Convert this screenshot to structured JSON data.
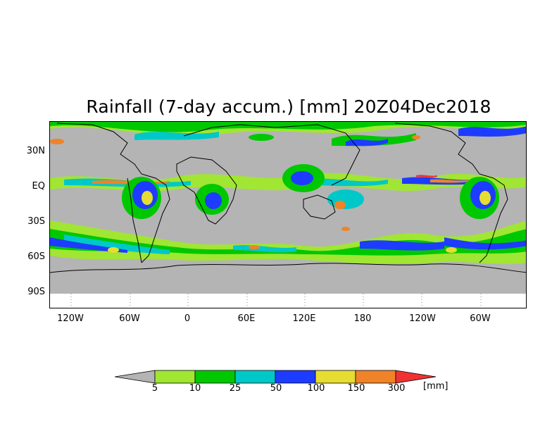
{
  "title": "Rainfall (7-day accum.) [mm] 20Z04Dec2018",
  "lat_labels": [
    "30N",
    "EQ",
    "30S",
    "60S",
    "90S"
  ],
  "lon_labels": [
    "120W",
    "60W",
    "0",
    "60E",
    "120E",
    "180",
    "120W",
    "60W"
  ],
  "legend": {
    "thresholds": [
      "5",
      "10",
      "25",
      "50",
      "100",
      "150",
      "300"
    ],
    "unit": "[mm]",
    "colors": [
      "#b4b4b4",
      "#a0e632",
      "#00c800",
      "#00c8c8",
      "#1e3cff",
      "#e6dc32",
      "#f08228",
      "#f03232"
    ]
  },
  "colors": {
    "no_rain": "#b4b4b4",
    "ocean_zone": "#b4b4b4",
    "land_outline": "#000000",
    "frame": "#000000"
  }
}
